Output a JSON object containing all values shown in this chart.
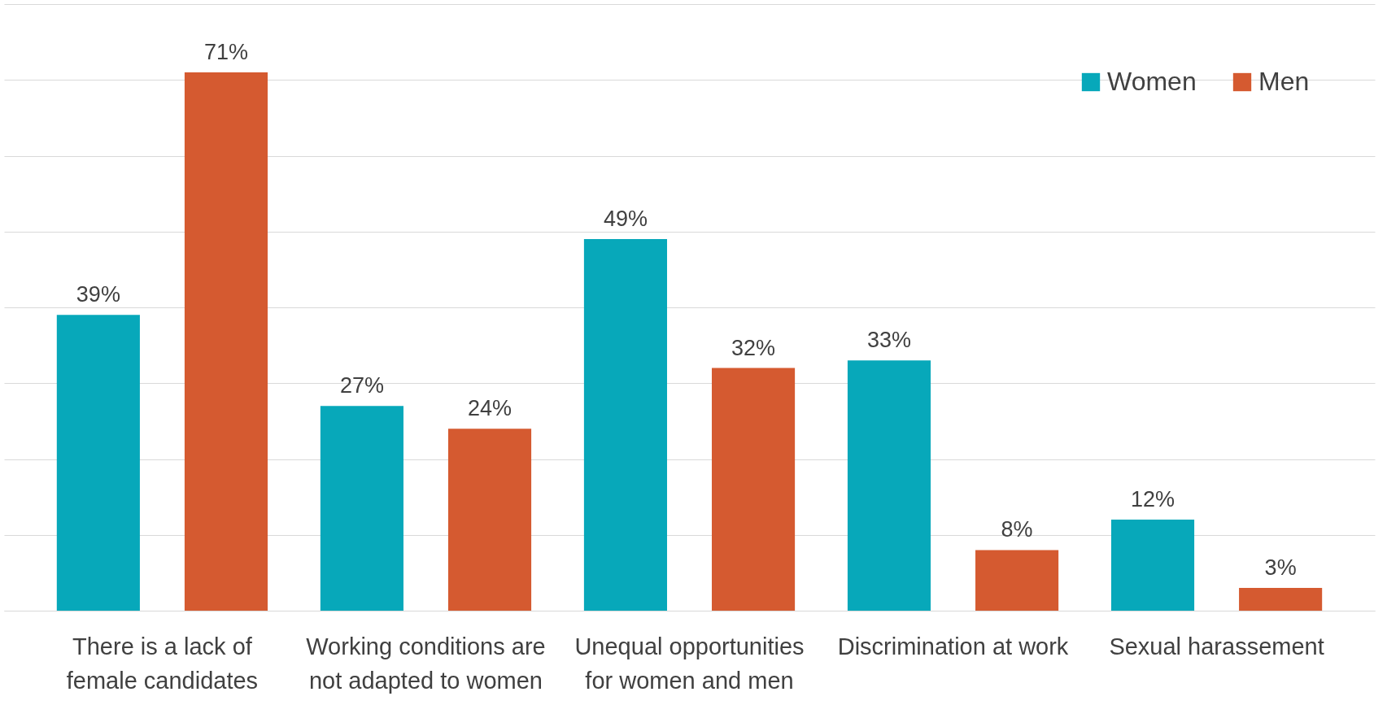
{
  "chart_data": {
    "type": "bar",
    "categories": [
      "There is a lack of female candidates",
      "Working conditions are not adapted to women",
      "Unequal opportunities for women and men",
      "Discrimination at work",
      "Sexual harassement"
    ],
    "series": [
      {
        "name": "Women",
        "color": "#07a8ba",
        "values": [
          39,
          27,
          49,
          33,
          12
        ],
        "value_labels": [
          "39%",
          "27%",
          "49%",
          "33%",
          "12%"
        ]
      },
      {
        "name": "Men",
        "color": "#d55a30",
        "values": [
          71,
          24,
          32,
          8,
          3
        ],
        "value_labels": [
          "71%",
          "24%",
          "32%",
          "8%",
          "3%"
        ]
      }
    ],
    "ylim": [
      0,
      80
    ],
    "yticks": [
      {
        "value": 0,
        "label": null
      },
      {
        "value": 10,
        "label": null
      },
      {
        "value": 20,
        "label": null
      },
      {
        "value": 30,
        "label": null
      },
      {
        "value": 40,
        "label": null
      },
      {
        "value": 50,
        "label": null
      },
      {
        "value": 60,
        "label": null
      },
      {
        "value": 70,
        "label": null
      },
      {
        "value": 80,
        "label": null
      }
    ],
    "tick_labels": "x",
    "grid": "y",
    "legend": "top right"
  }
}
